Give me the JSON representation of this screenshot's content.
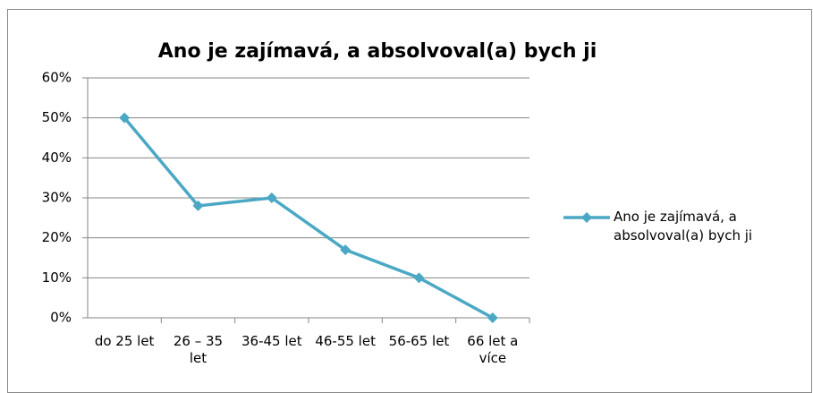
{
  "chart_data": {
    "type": "line",
    "title": "Ano je zajímavá, a absolvoval(a) bych ji",
    "categories": [
      "do 25 let",
      "26 – 35 let",
      "36-45 let",
      "46-55 let",
      "56-65 let",
      "66 let a více"
    ],
    "series": [
      {
        "name": "Ano je zajímavá, a absolvoval(a) bych ji",
        "color": "#4aa8c4",
        "values": [
          50,
          28,
          30,
          17,
          10,
          0
        ]
      }
    ],
    "ylim": [
      0,
      60
    ],
    "yticks": [
      {
        "value": 0,
        "label": "0%"
      },
      {
        "value": 10,
        "label": "10%"
      },
      {
        "value": 20,
        "label": "20%"
      },
      {
        "value": 30,
        "label": "30%"
      },
      {
        "value": 40,
        "label": "40%"
      },
      {
        "value": 50,
        "label": "50%"
      },
      {
        "value": 60,
        "label": "60%"
      }
    ],
    "grid": true,
    "legend": "right"
  }
}
